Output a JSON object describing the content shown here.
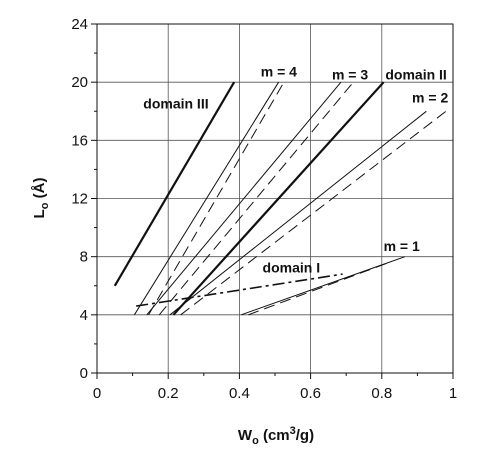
{
  "chart_data": {
    "type": "line",
    "xlabel": {
      "main": "W",
      "sub": "o",
      "rest": " (cm",
      "sup": "3",
      "end": "/g)"
    },
    "ylabel": {
      "main": "L",
      "sub": "o",
      "rest": " (Å)"
    },
    "xlim": [
      0,
      1
    ],
    "ylim": [
      0,
      24
    ],
    "xticks": [
      0,
      0.2,
      0.4,
      0.6,
      0.8,
      1
    ],
    "xtick_labels": [
      "0",
      "0.2",
      "0.4",
      "0.6",
      "0.8",
      "1"
    ],
    "yticks": [
      0,
      4,
      8,
      12,
      16,
      20,
      24
    ],
    "ytick_labels": [
      "0",
      "4",
      "8",
      "12",
      "16",
      "20",
      "24"
    ],
    "grid": true,
    "series": [
      {
        "style": "thick-solid",
        "x": [
          0.05,
          0.385
        ],
        "y": [
          6,
          20
        ]
      },
      {
        "style": "thin-solid",
        "x": [
          0.105,
          0.51
        ],
        "y": [
          4,
          20
        ]
      },
      {
        "style": "dashed",
        "x": [
          0.145,
          0.525
        ],
        "y": [
          4,
          20
        ]
      },
      {
        "style": "thin-solid",
        "x": [
          0.14,
          0.685
        ],
        "y": [
          4,
          20
        ]
      },
      {
        "style": "dashed",
        "x": [
          0.175,
          0.72
        ],
        "y": [
          4,
          20
        ]
      },
      {
        "style": "thick-solid",
        "x": [
          0.215,
          0.805
        ],
        "y": [
          4,
          20
        ]
      },
      {
        "style": "thin-solid",
        "x": [
          0.205,
          0.925
        ],
        "y": [
          4,
          18
        ]
      },
      {
        "style": "dashed",
        "x": [
          0.235,
          0.98
        ],
        "y": [
          4,
          18
        ]
      },
      {
        "style": "thin-solid",
        "x": [
          0.405,
          0.865
        ],
        "y": [
          4,
          8
        ]
      },
      {
        "style": "dashed",
        "x": [
          0.425,
          0.82
        ],
        "y": [
          4,
          7.6
        ]
      },
      {
        "style": "dash-dot",
        "x": [
          0.11,
          0.69
        ],
        "y": [
          4.6,
          6.8
        ]
      }
    ],
    "annotations": [
      {
        "text": "domain III",
        "x": 0.13,
        "y": 18.2,
        "anchor": "start"
      },
      {
        "text": "m = 4",
        "x": 0.46,
        "y": 20.4,
        "anchor": "start"
      },
      {
        "text": "m = 3",
        "x": 0.66,
        "y": 20.2,
        "anchor": "start"
      },
      {
        "text": "domain II",
        "x": 0.81,
        "y": 20.2,
        "anchor": "start"
      },
      {
        "text": "m = 2",
        "x": 0.885,
        "y": 18.6,
        "anchor": "start"
      },
      {
        "text": "domain I",
        "x": 0.465,
        "y": 6.9,
        "anchor": "start"
      },
      {
        "text": "m = 1",
        "x": 0.805,
        "y": 8.4,
        "anchor": "start"
      }
    ],
    "colors": {
      "line": "#111111",
      "grid": "#555555",
      "background": "#ffffff"
    }
  }
}
